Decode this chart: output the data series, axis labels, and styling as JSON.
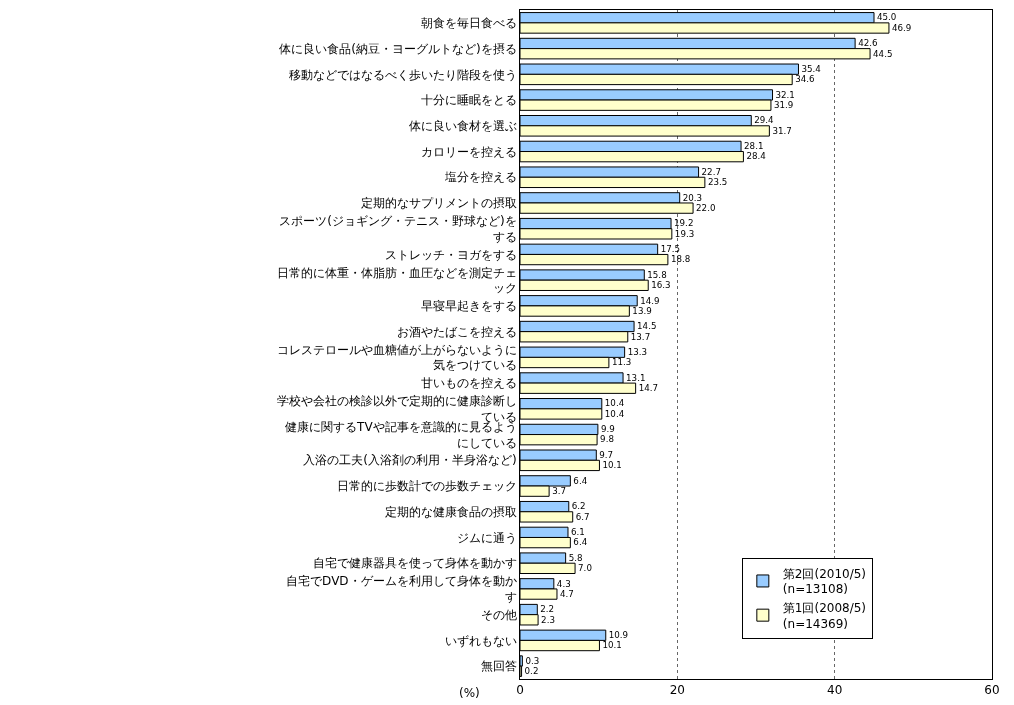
{
  "chart_data": {
    "type": "bar",
    "orientation": "horizontal",
    "xlabel": "(%)",
    "categories": [
      "朝食を毎日食べる",
      "体に良い食品(納豆・ヨーグルトなど)を摂る",
      "移動などではなるべく歩いたり階段を使う",
      "十分に睡眠をとる",
      "体に良い食材を選ぶ",
      "カロリーを控える",
      "塩分を控える",
      "定期的なサプリメントの摂取",
      "スポーツ(ジョギング・テニス・野球など)をする",
      "ストレッチ・ヨガをする",
      "日常的に体重・体脂肪・血圧などを測定チェック",
      "早寝早起きをする",
      "お酒やたばこを控える",
      "コレステロールや血糖値が上がらないように気をつけている",
      "甘いものを控える",
      "学校や会社の検診以外で定期的に健康診断している",
      "健康に関するTVや記事を意識的に見るようにしている",
      "入浴の工夫(入浴剤の利用・半身浴など)",
      "日常的に歩数計での歩数チェック",
      "定期的な健康食品の摂取",
      "ジムに通う",
      "自宅で健康器具を使って身体を動かす",
      "自宅でDVD・ゲームを利用して身体を動かす",
      "その他",
      "いずれもない",
      "無回答"
    ],
    "series": [
      {
        "name": "第2回(2010/5)\n(n=13108)",
        "color": "#99ccff",
        "values": [
          45.0,
          42.6,
          35.4,
          32.1,
          29.4,
          28.1,
          22.7,
          20.3,
          19.2,
          17.5,
          15.8,
          14.9,
          14.5,
          13.3,
          13.1,
          10.4,
          9.9,
          9.7,
          6.4,
          6.2,
          6.1,
          5.8,
          4.3,
          2.2,
          10.9,
          0.3
        ],
        "value_labels": [
          "45.0",
          "42.6",
          "35.4",
          "32.1",
          "29.4",
          "28.1",
          "22.7",
          "20.3",
          "19.2",
          "17.5",
          "15.8",
          "14.9",
          "14.5",
          "13.3",
          "13.1",
          "10.4",
          "9.9",
          "9.7",
          "6.4",
          "6.2",
          "6.1",
          "5.8",
          "4.3",
          "2.2",
          "10.9",
          "0.3"
        ]
      },
      {
        "name": "第1回(2008/5)\n(n=14369)",
        "color": "#ffffcc",
        "values": [
          46.9,
          44.5,
          34.6,
          31.9,
          31.7,
          28.4,
          23.5,
          22.0,
          19.3,
          18.8,
          16.3,
          13.9,
          13.7,
          11.3,
          14.7,
          10.4,
          9.8,
          10.1,
          3.7,
          6.7,
          6.4,
          7.0,
          4.7,
          2.3,
          10.1,
          0.2
        ],
        "value_labels": [
          "46.9",
          "44.5",
          "34.6",
          "31.9",
          "31.7",
          "28.4",
          "23.5",
          "22.0",
          "19.3",
          "18.8",
          "16.3",
          "13.9",
          "13.7",
          "11.3",
          "14.7",
          "10.4",
          "9.8",
          "10.1",
          "3.7",
          "6.7",
          "6.4",
          "7.0",
          "4.7",
          "2.3",
          "10.1",
          "0.2"
        ]
      }
    ],
    "xlim": [
      0,
      60
    ],
    "xticks": [
      0,
      20,
      40,
      60
    ],
    "grid": "x",
    "legend": "bottom right"
  }
}
